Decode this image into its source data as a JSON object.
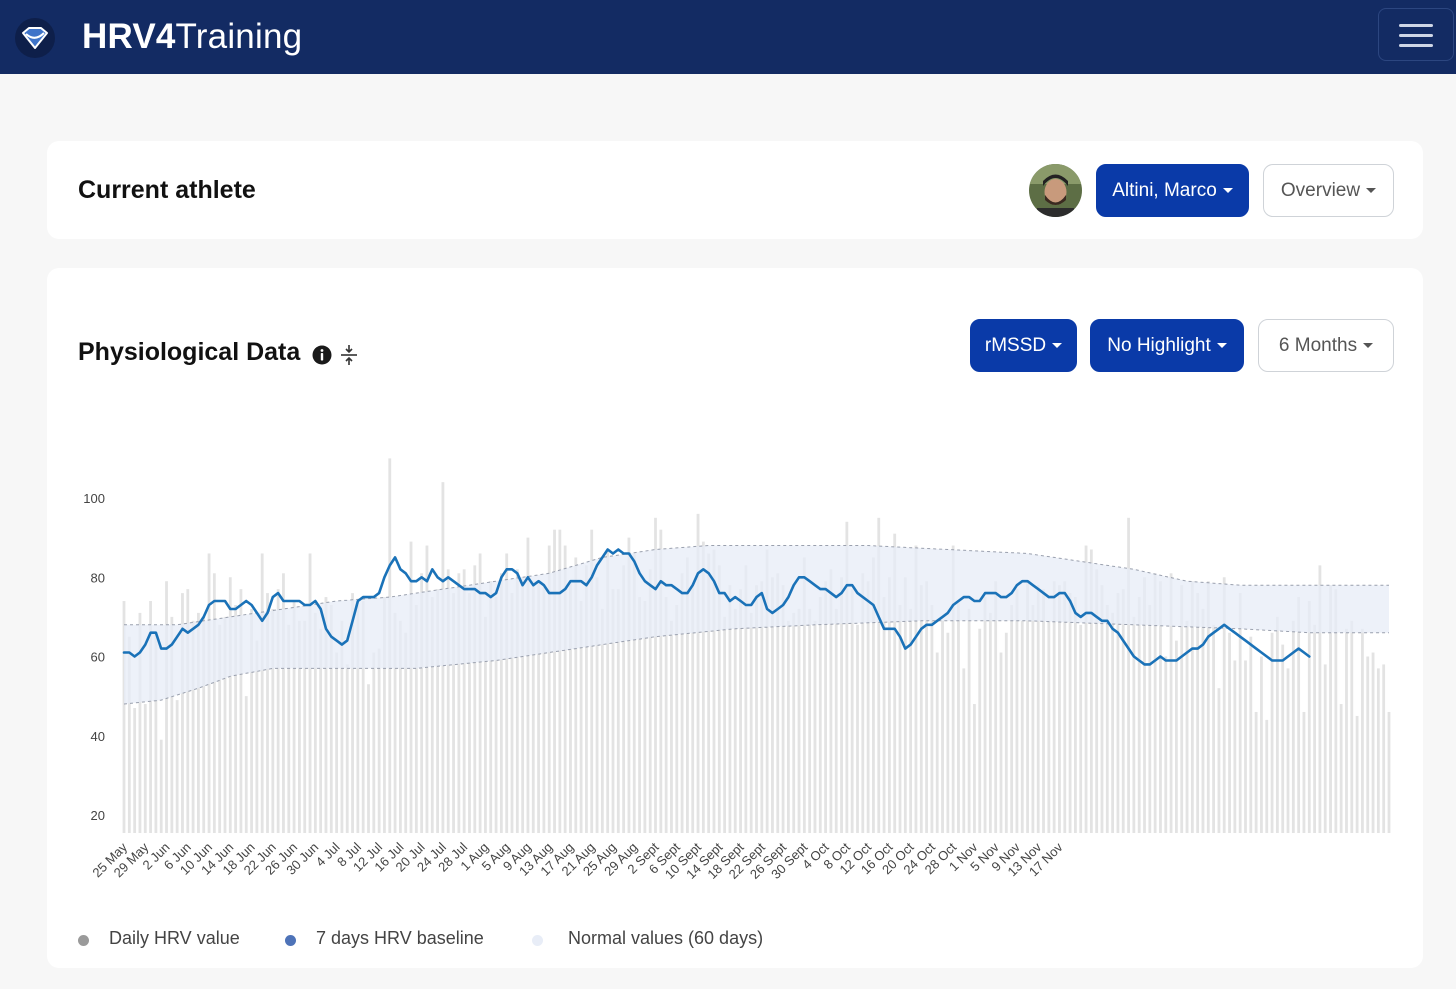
{
  "navbar": {
    "brand_bold": "HRV4",
    "brand_light": "Training",
    "logo_icon": "heart-diamond-icon",
    "menu_icon": "hamburger-menu-icon",
    "background": "#132b63"
  },
  "athlete_card": {
    "title": "Current athlete",
    "athlete_name": "Altini, Marco",
    "view_select": "Overview"
  },
  "physio_card": {
    "title": "Physiological Data",
    "metric_select": "rMSSD",
    "highlight_select": "No Highlight",
    "range_select": "6 Months"
  },
  "colors": {
    "accent": "#0a3aa8",
    "baseline_line": "#1a72b8",
    "bars": "#e3e3e3",
    "normal_band": "#e7ecf7"
  },
  "chart_data": {
    "type": "bar+line",
    "title": "",
    "ylabel": "",
    "xlabel": "",
    "ylim": [
      16,
      110
    ],
    "yticks": [
      20,
      40,
      60,
      80,
      100
    ],
    "x_tick_labels": [
      "25 May",
      "29 May",
      "2 Jun",
      "6 Jun",
      "10 Jun",
      "14 Jun",
      "18 Jun",
      "22 Jun",
      "26 Jun",
      "30 Jun",
      "4 Jul",
      "8 Jul",
      "12 Jul",
      "16 Jul",
      "20 Jul",
      "24 Jul",
      "28 Jul",
      "1 Aug",
      "5 Aug",
      "9 Aug",
      "13 Aug",
      "17 Aug",
      "21 Aug",
      "25 Aug",
      "29 Aug",
      "2 Sept",
      "6 Sept",
      "10 Sept",
      "14 Sept",
      "18 Sept",
      "22 Sept",
      "26 Sept",
      "30 Sept",
      "4 Oct",
      "8 Oct",
      "12 Oct",
      "16 Oct",
      "20 Oct",
      "24 Oct",
      "28 Oct",
      "1 Nov",
      "5 Nov",
      "9 Nov",
      "13 Nov",
      "17 Nov"
    ],
    "series": [
      {
        "name": "Daily HRV value",
        "type": "bar",
        "values": [
          74,
          65,
          47,
          71,
          48,
          74,
          66,
          39,
          79,
          70,
          49,
          76,
          77,
          69,
          71,
          70,
          86,
          81,
          68,
          70,
          80,
          73,
          77,
          50,
          72,
          64,
          86,
          76,
          72,
          77,
          81,
          68,
          74,
          69,
          69,
          86,
          71,
          67,
          75,
          73,
          61,
          69,
          58,
          76,
          73,
          74,
          53,
          61,
          62,
          75,
          110,
          71,
          69,
          66,
          89,
          73,
          81,
          88,
          75,
          77,
          104,
          82,
          76,
          81,
          82,
          76,
          83,
          86,
          70,
          79,
          75,
          81,
          86,
          76,
          82,
          80,
          90,
          79,
          79,
          78,
          88,
          92,
          92,
          88,
          79,
          85,
          74,
          83,
          92,
          80,
          72,
          87,
          77,
          77,
          83,
          90,
          86,
          75,
          74,
          82,
          95,
          92,
          75,
          69,
          73,
          81,
          85,
          78,
          96,
          89,
          86,
          87,
          83,
          70,
          78,
          72,
          77,
          83,
          71,
          78,
          79,
          87,
          80,
          81,
          78,
          69,
          71,
          72,
          85,
          72,
          69,
          75,
          79,
          82,
          72,
          80,
          94,
          77,
          68,
          81,
          79,
          85,
          95,
          75,
          80,
          91,
          73,
          80,
          72,
          88,
          78,
          79,
          73,
          61,
          69,
          66,
          88,
          74,
          57,
          72,
          48,
          67,
          75,
          71,
          79,
          61,
          66,
          73,
          77,
          69,
          79,
          73,
          78,
          77,
          69,
          79,
          78,
          79,
          76,
          75,
          68,
          88,
          87,
          82,
          78,
          73,
          71,
          76,
          77,
          95,
          70,
          75,
          80,
          73,
          81,
          79,
          60,
          81,
          64,
          78,
          69,
          79,
          76,
          72,
          79,
          68,
          52,
          80,
          66,
          59,
          76,
          59,
          65,
          46,
          60,
          44,
          66,
          70,
          63,
          57,
          69,
          75,
          46,
          74,
          68,
          83,
          58,
          78,
          77,
          48,
          67,
          69,
          45,
          67,
          60,
          61,
          57,
          58,
          46
        ],
        "color": "#e3e3e3"
      },
      {
        "name": "7 days HRV baseline",
        "type": "line",
        "values": [
          61,
          61,
          60,
          61,
          63,
          66,
          66,
          62,
          62,
          63,
          65,
          67,
          66,
          67,
          68,
          70,
          73,
          74,
          74,
          74,
          72,
          72,
          73,
          74,
          73,
          71,
          69,
          71,
          75,
          76,
          74,
          74,
          74,
          74,
          73,
          73,
          74,
          72,
          67,
          65,
          64,
          63,
          64,
          69,
          74,
          75,
          75,
          75,
          76,
          80,
          83,
          85,
          82,
          81,
          79,
          79,
          80,
          79,
          82,
          80,
          79,
          80,
          79,
          78,
          77,
          77,
          77,
          76,
          76,
          75,
          76,
          80,
          82,
          82,
          81,
          78,
          80,
          78,
          79,
          78,
          76,
          76,
          76,
          77,
          79,
          79,
          79,
          78,
          80,
          83,
          85,
          87,
          86,
          87,
          86,
          86,
          84,
          81,
          79,
          78,
          77,
          79,
          78,
          78,
          77,
          76,
          76,
          78,
          81,
          82,
          81,
          79,
          76,
          76,
          74,
          75,
          74,
          73,
          73,
          75,
          76,
          72,
          71,
          72,
          73,
          75,
          78,
          80,
          80,
          79,
          78,
          77,
          77,
          76,
          75,
          76,
          78,
          78,
          76,
          75,
          74,
          73,
          70,
          67,
          67,
          67,
          65,
          62,
          63,
          65,
          67,
          68,
          68,
          69,
          70,
          71,
          73,
          74,
          75,
          75,
          74,
          74,
          76,
          76,
          76,
          75,
          75,
          76,
          78,
          79,
          79,
          78,
          77,
          76,
          75,
          75,
          76,
          76,
          74,
          71,
          70,
          71,
          71,
          70,
          69,
          69,
          67,
          66,
          64,
          62,
          60,
          59,
          58,
          58,
          59,
          60,
          59,
          59,
          59,
          60,
          61,
          62,
          62,
          63,
          65,
          66,
          67,
          68,
          67,
          66,
          65,
          64,
          63,
          62,
          61,
          60,
          59,
          59,
          59,
          60,
          61,
          62,
          61,
          60
        ]
      },
      {
        "name": "Normal values (60 days)",
        "type": "band",
        "lower_points": [
          [
            0,
            48
          ],
          [
            7,
            49
          ],
          [
            14,
            52
          ],
          [
            20,
            55
          ],
          [
            28,
            57
          ],
          [
            40,
            57
          ],
          [
            55,
            57
          ],
          [
            70,
            59
          ],
          [
            85,
            62
          ],
          [
            100,
            65
          ],
          [
            115,
            67
          ],
          [
            130,
            68
          ],
          [
            150,
            69
          ],
          [
            170,
            69
          ],
          [
            190,
            68
          ],
          [
            210,
            67
          ],
          [
            223,
            66
          ]
        ],
        "upper_points": [
          [
            0,
            68
          ],
          [
            10,
            68
          ],
          [
            20,
            70
          ],
          [
            30,
            72
          ],
          [
            40,
            74
          ],
          [
            50,
            75
          ],
          [
            60,
            77
          ],
          [
            70,
            79
          ],
          [
            80,
            81
          ],
          [
            90,
            85
          ],
          [
            100,
            87
          ],
          [
            110,
            88
          ],
          [
            125,
            88
          ],
          [
            140,
            88
          ],
          [
            155,
            87
          ],
          [
            170,
            86
          ],
          [
            180,
            84
          ],
          [
            190,
            82
          ],
          [
            200,
            79
          ],
          [
            210,
            78
          ],
          [
            223,
            78
          ]
        ]
      }
    ],
    "legend": [
      "Daily HRV value",
      "7 days HRV baseline",
      "Normal values (60 days)"
    ]
  },
  "legend": {
    "daily": "Daily HRV value",
    "baseline": "7 days HRV baseline",
    "normal": "Normal values (60 days)"
  }
}
